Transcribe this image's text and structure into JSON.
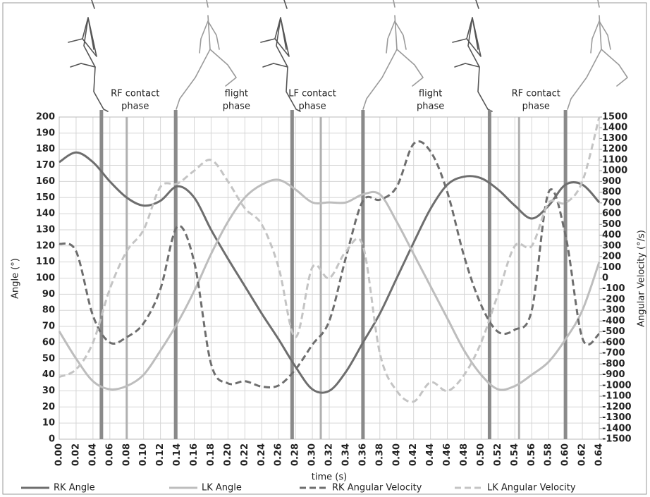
{
  "chart_data": {
    "type": "line",
    "xlabel": "time (s)",
    "ylabel": "Angle (°)",
    "y2label": "Angular Velocity (°/s)",
    "x": [
      0,
      0.02,
      0.04,
      0.06,
      0.08,
      0.1,
      0.12,
      0.14,
      0.16,
      0.18,
      0.2,
      0.22,
      0.24,
      0.26,
      0.28,
      0.3,
      0.32,
      0.34,
      0.36,
      0.38,
      0.4,
      0.42,
      0.44,
      0.46,
      0.48,
      0.5,
      0.52,
      0.54,
      0.56,
      0.58,
      0.6,
      0.62,
      0.64
    ],
    "series": [
      {
        "name": "RK Angle",
        "color": "#6e6e6e",
        "style": "solid",
        "values": [
          172,
          178,
          172,
          160,
          150,
          145,
          148,
          157,
          150,
          130,
          112,
          95,
          78,
          62,
          45,
          31,
          30,
          42,
          60,
          78,
          100,
          122,
          143,
          158,
          163,
          162,
          155,
          145,
          137,
          145,
          158,
          158,
          147
        ]
      },
      {
        "name": "LK Angle",
        "color": "#bdbdbd",
        "style": "solid",
        "values": [
          67,
          50,
          36,
          31,
          33,
          40,
          55,
          72,
          92,
          115,
          135,
          150,
          158,
          161,
          155,
          147,
          147,
          147,
          152,
          152,
          135,
          115,
          95,
          75,
          55,
          40,
          31,
          33,
          40,
          48,
          62,
          80,
          110
        ]
      },
      {
        "name": "RK Angular Velocity",
        "color": "#6e6e6e",
        "style": "dashed",
        "axis": "y2",
        "values": [
          320,
          250,
          -350,
          -600,
          -550,
          -420,
          -100,
          480,
          150,
          -800,
          -980,
          -960,
          -1010,
          -1000,
          -850,
          -620,
          -400,
          200,
          720,
          730,
          850,
          1250,
          1180,
          800,
          200,
          -250,
          -500,
          -480,
          -300,
          800,
          400,
          -560,
          -520
        ]
      },
      {
        "name": "LK Angular Velocity",
        "color": "#c4c4c4",
        "style": "dashed",
        "axis": "y2",
        "values": [
          -920,
          -850,
          -600,
          -100,
          250,
          450,
          850,
          880,
          1000,
          1100,
          900,
          650,
          500,
          100,
          -550,
          100,
          0,
          250,
          300,
          -700,
          -1050,
          -1150,
          -970,
          -1050,
          -900,
          -600,
          -150,
          300,
          300,
          700,
          700,
          900,
          1500
        ]
      }
    ],
    "xlim": [
      0,
      0.64
    ],
    "ylim": [
      0,
      200
    ],
    "y2lim": [
      -1500,
      1500
    ],
    "xticks": [
      {
        "value": 0,
        "label": "0.00"
      },
      {
        "value": 0.02,
        "label": "0.02"
      },
      {
        "value": 0.04,
        "label": "0.04"
      },
      {
        "value": 0.06,
        "label": "0.06"
      },
      {
        "value": 0.08,
        "label": "0.08"
      },
      {
        "value": 0.1,
        "label": "0.10"
      },
      {
        "value": 0.12,
        "label": "0.12"
      },
      {
        "value": 0.14,
        "label": "0.14"
      },
      {
        "value": 0.16,
        "label": "0.16"
      },
      {
        "value": 0.18,
        "label": "0.18"
      },
      {
        "value": 0.2,
        "label": "0.20"
      },
      {
        "value": 0.22,
        "label": "0.22"
      },
      {
        "value": 0.24,
        "label": "0.24"
      },
      {
        "value": 0.26,
        "label": "0.26"
      },
      {
        "value": 0.28,
        "label": "0.28"
      },
      {
        "value": 0.3,
        "label": "0.30"
      },
      {
        "value": 0.32,
        "label": "0.32"
      },
      {
        "value": 0.34,
        "label": "0.34"
      },
      {
        "value": 0.36,
        "label": "0.36"
      },
      {
        "value": 0.38,
        "label": "0.38"
      },
      {
        "value": 0.4,
        "label": "0.40"
      },
      {
        "value": 0.42,
        "label": "0.42"
      },
      {
        "value": 0.44,
        "label": "0.44"
      },
      {
        "value": 0.46,
        "label": "0.46"
      },
      {
        "value": 0.48,
        "label": "0.48"
      },
      {
        "value": 0.5,
        "label": "0.50"
      },
      {
        "value": 0.52,
        "label": "0.52"
      },
      {
        "value": 0.54,
        "label": "0.54"
      },
      {
        "value": 0.56,
        "label": "0.56"
      },
      {
        "value": 0.58,
        "label": "0.58"
      },
      {
        "value": 0.6,
        "label": "0.60"
      },
      {
        "value": 0.62,
        "label": "0.62"
      },
      {
        "value": 0.64,
        "label": "0.64"
      }
    ],
    "yticks": [
      0,
      10,
      20,
      30,
      40,
      50,
      60,
      70,
      80,
      90,
      100,
      110,
      120,
      130,
      140,
      150,
      160,
      170,
      180,
      190,
      200
    ],
    "y2ticks": [
      -1500,
      -1400,
      -1300,
      -1200,
      -1100,
      -1000,
      -900,
      -800,
      -700,
      -600,
      -500,
      -400,
      -300,
      -200,
      -100,
      0,
      100,
      200,
      300,
      400,
      500,
      600,
      700,
      800,
      900,
      1000,
      1100,
      1200,
      1300,
      1400,
      1500
    ],
    "grid": true,
    "contact_lines": [
      0.05,
      0.138,
      0.276,
      0.36,
      0.51,
      0.6
    ],
    "mid_lines": [
      0.08,
      0.31,
      0.545
    ],
    "annotations": [
      {
        "x": 0.09,
        "lines": [
          "RF contact",
          "phase"
        ]
      },
      {
        "x": 0.21,
        "lines": [
          "flight",
          "phase"
        ]
      },
      {
        "x": 0.3,
        "lines": [
          "LF contact",
          "phase"
        ]
      },
      {
        "x": 0.44,
        "lines": [
          "flight",
          "phase"
        ]
      },
      {
        "x": 0.565,
        "lines": [
          "RF contact",
          "phase"
        ]
      }
    ],
    "legend": "bottom"
  }
}
